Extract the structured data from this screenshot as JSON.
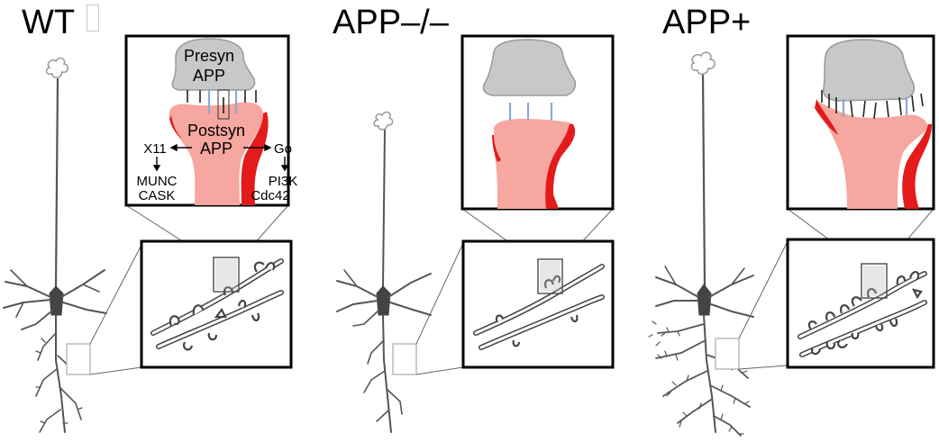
{
  "panels": {
    "wt": {
      "heading": "WT",
      "labels": {
        "presyn": "Presyn",
        "presyn_app": "APP",
        "postsyn": "Postsyn",
        "postsyn_app": "APP",
        "x11": "X11",
        "munc": "MUNC",
        "cask": "CASK",
        "go": "Go",
        "pi3k": "PI3K",
        "cdc42": "Cdc42"
      }
    },
    "ko": {
      "heading": "APP–/–"
    },
    "ox": {
      "heading": "APP+"
    }
  },
  "colors": {
    "presynaptic_terminal": "#c8c8c8",
    "postsynaptic_spine": "#f6a7a0",
    "postsynaptic_density": "#e31b1b",
    "synaptic_marker_blue": "#8aa8d8",
    "neuron": "#444444"
  }
}
